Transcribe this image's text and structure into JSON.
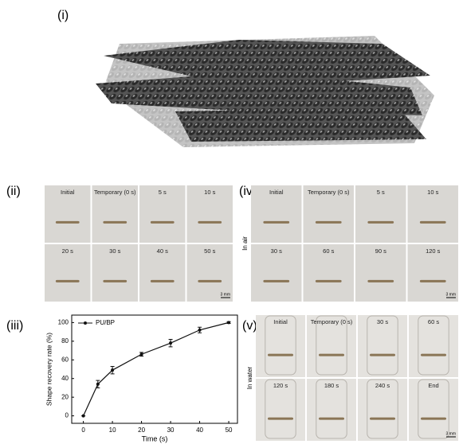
{
  "panel_labels": [
    "(i)",
    "(ii)",
    "(iii)",
    "(iv)",
    "(v)"
  ],
  "panel_ii": {
    "cells": [
      "Initial",
      "Temporary (0 s)",
      "5 s",
      "10 s",
      "20 s",
      "30 s",
      "40 s",
      "50 s"
    ],
    "scale": "3 mm"
  },
  "panel_iv": {
    "side": "In air",
    "cells": [
      "Initial",
      "Temporary (0 s)",
      "5 s",
      "10 s",
      "30 s",
      "60 s",
      "90 s",
      "120 s"
    ],
    "scale": "3 mm"
  },
  "panel_v": {
    "side": "In water",
    "cells": [
      "Initial",
      "Temporary (0 s)",
      "30 s",
      "60 s",
      "120 s",
      "180 s",
      "240 s",
      "End"
    ],
    "scale": "3 mm"
  },
  "chart_data": {
    "type": "line",
    "x_label": "Time (s)",
    "y_label": "Shape recovery rate (%)",
    "x": [
      0,
      5,
      10,
      20,
      30,
      40,
      50
    ],
    "series": [
      {
        "name": "PU/BP",
        "color": "#111111",
        "values": [
          0,
          34,
          49,
          66,
          78,
          92,
          100
        ],
        "errors": [
          0,
          4,
          4,
          2,
          4,
          3,
          1
        ]
      }
    ],
    "xlim": [
      -4,
      53
    ],
    "ylim": [
      -8,
      108
    ],
    "xticks": [
      0,
      10,
      20,
      30,
      40,
      50
    ],
    "yticks": [
      0,
      20,
      40,
      60,
      80,
      100
    ],
    "legend": "upper left"
  }
}
